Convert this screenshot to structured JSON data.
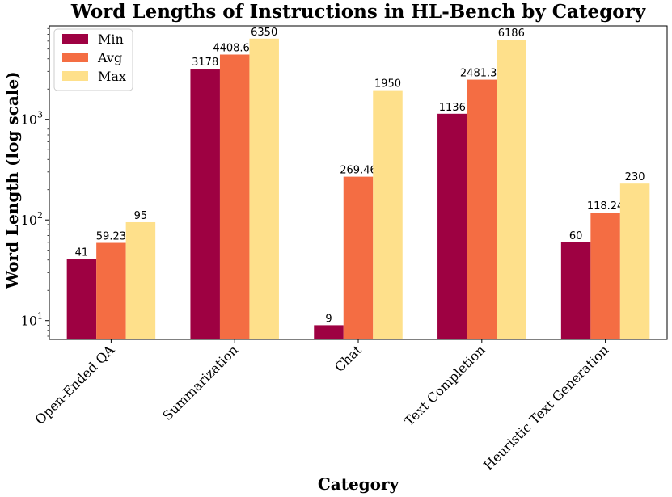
{
  "chart_data": {
    "type": "bar",
    "title": "Word Lengths of Instructions in HL-Bench by Category",
    "xlabel": "Category",
    "ylabel": "Word Length (log scale)",
    "yscale": "log",
    "ylim": [
      6.5,
      8500
    ],
    "y_ticks": [
      {
        "value": 10,
        "base": "10",
        "exp": "1"
      },
      {
        "value": 100,
        "base": "10",
        "exp": "2"
      },
      {
        "value": 1000,
        "base": "10",
        "exp": "3"
      }
    ],
    "categories": [
      "Open-Ended QA",
      "Summarization",
      "Chat",
      "Text Completion",
      "Heuristic Text Generation"
    ],
    "series": [
      {
        "name": "Min",
        "color": "#9e0142",
        "values": [
          41,
          3178,
          9,
          1136,
          60
        ],
        "labels": [
          "41",
          "3178",
          "9",
          "1136",
          "60"
        ]
      },
      {
        "name": "Avg",
        "color": "#f46d43",
        "values": [
          59.23,
          4408.61,
          269.46,
          2481.36,
          118.24
        ],
        "labels": [
          "59.23",
          "4408.61",
          "269.46",
          "2481.36",
          "118.24"
        ]
      },
      {
        "name": "Max",
        "color": "#fee08b",
        "values": [
          95,
          6350,
          1950,
          6186,
          230
        ],
        "labels": [
          "95",
          "6350",
          "1950",
          "6186",
          "230"
        ]
      }
    ],
    "legend": {
      "position": "top-left"
    },
    "grid": false
  }
}
